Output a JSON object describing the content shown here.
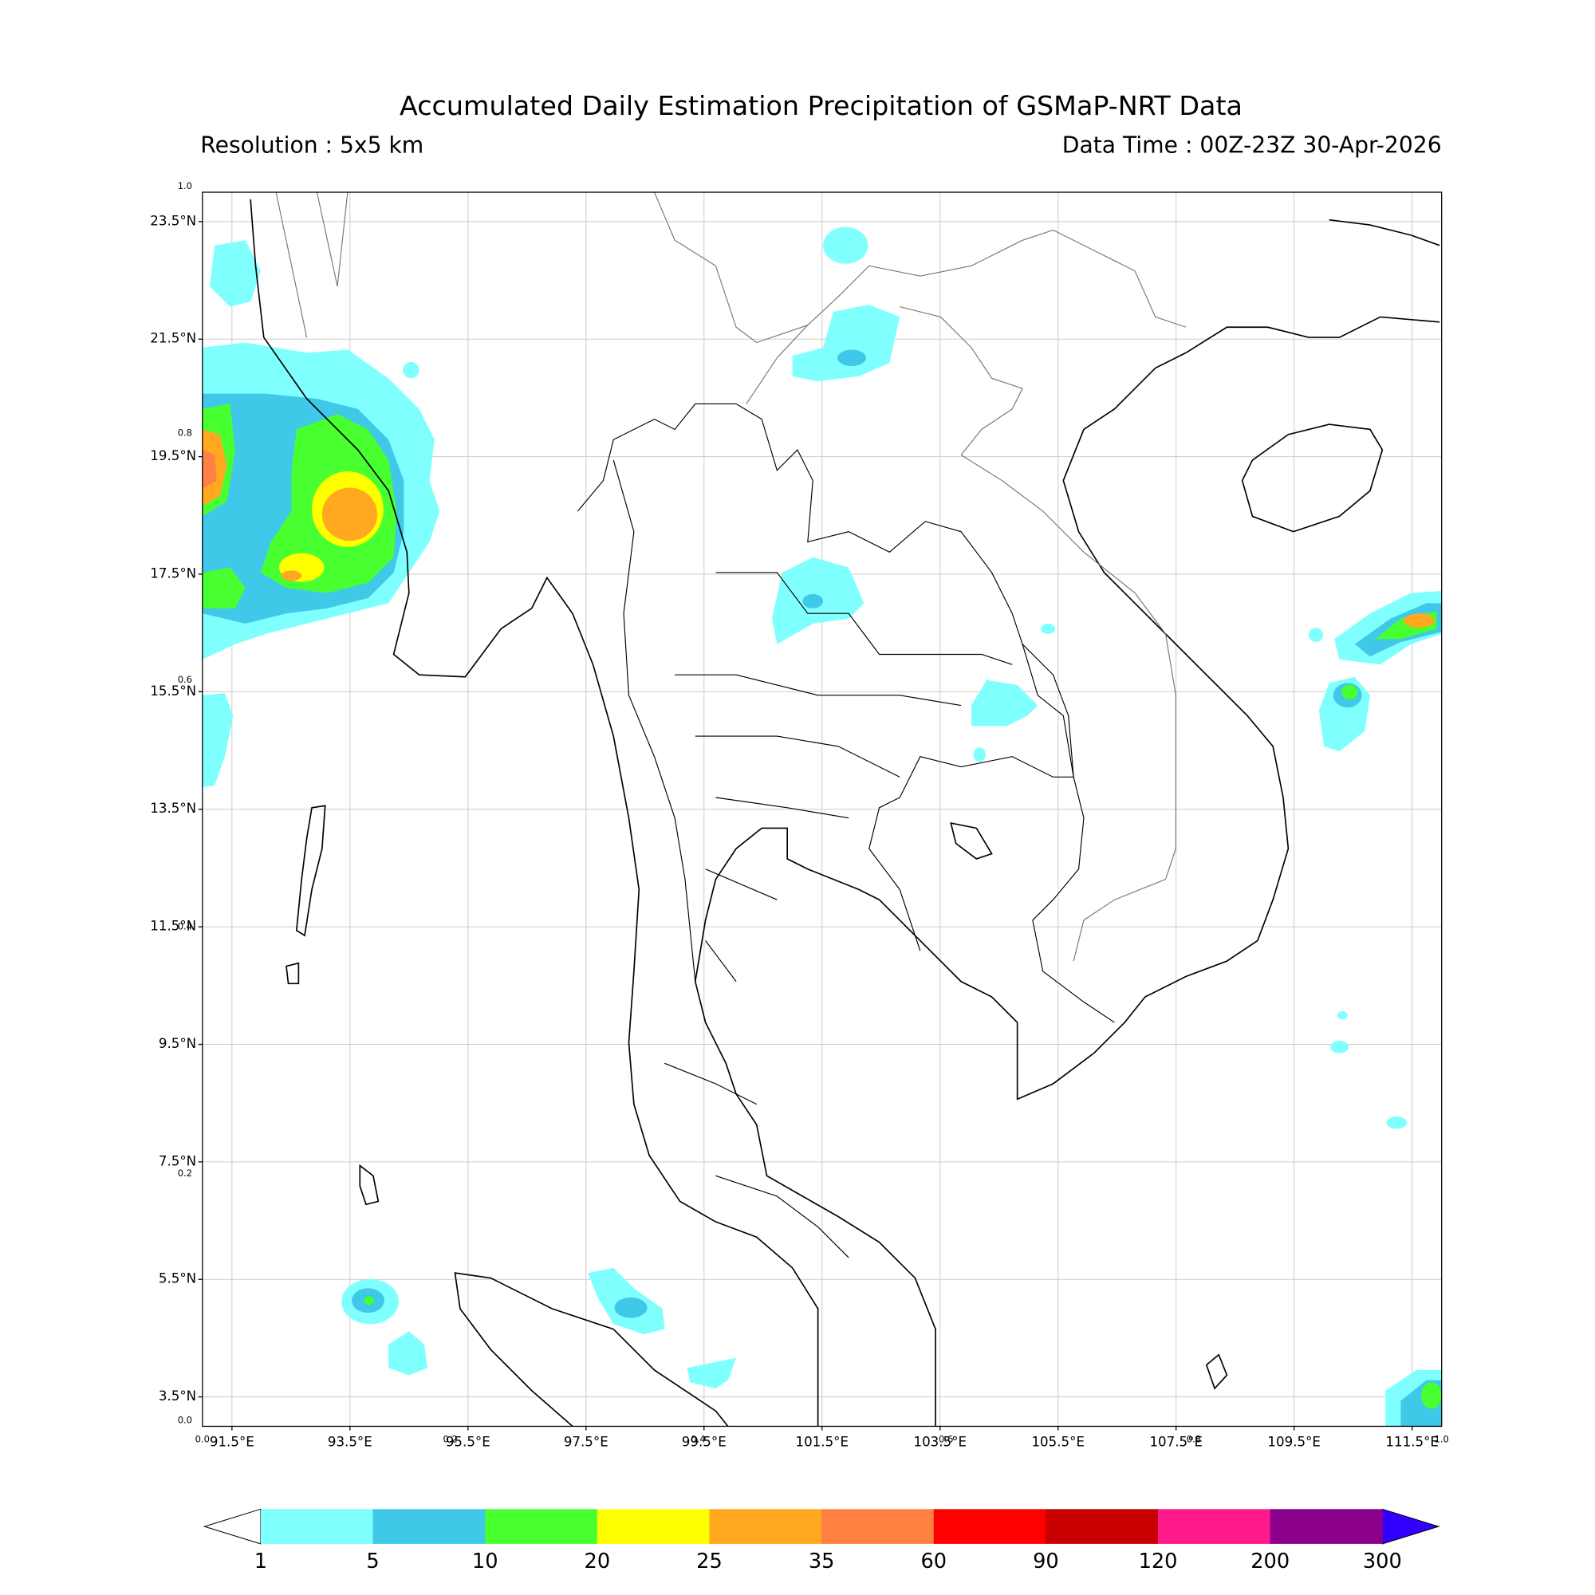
{
  "header": {
    "title": "Accumulated Daily Estimation Precipitation of GSMaP-NRT Data",
    "resolution": "Resolution : 5x5 km",
    "data_time": "Data Time : 00Z-23Z 30-Apr-2026"
  },
  "map": {
    "lon_range": [
      91,
      112
    ],
    "lat_range": [
      3,
      24
    ],
    "lat_ticks": [
      {
        "value": 23.5,
        "label": "23.5°N"
      },
      {
        "value": 21.5,
        "label": "21.5°N"
      },
      {
        "value": 19.5,
        "label": "19.5°N"
      },
      {
        "value": 17.5,
        "label": "17.5°N"
      },
      {
        "value": 15.5,
        "label": "15.5°N"
      },
      {
        "value": 13.5,
        "label": "13.5°N"
      },
      {
        "value": 11.5,
        "label": "11.5°N"
      },
      {
        "value": 9.5,
        "label": "9.5°N"
      },
      {
        "value": 7.5,
        "label": "7.5°N"
      },
      {
        "value": 5.5,
        "label": "5.5°N"
      },
      {
        "value": 3.5,
        "label": "3.5°N"
      }
    ],
    "lon_ticks": [
      {
        "value": 91.5,
        "label": "91.5°E"
      },
      {
        "value": 93.5,
        "label": "93.5°E"
      },
      {
        "value": 95.5,
        "label": "95.5°E"
      },
      {
        "value": 97.5,
        "label": "97.5°E"
      },
      {
        "value": 99.5,
        "label": "99.5°E"
      },
      {
        "value": 101.5,
        "label": "101.5°E"
      },
      {
        "value": 103.5,
        "label": "103.5°E"
      },
      {
        "value": 105.5,
        "label": "105.5°E"
      },
      {
        "value": 107.5,
        "label": "107.5°E"
      },
      {
        "value": 109.5,
        "label": "109.5°E"
      },
      {
        "value": 111.5,
        "label": "111.5°E"
      }
    ]
  },
  "overlay_axis": {
    "range": [
      0,
      1
    ],
    "ticks": [
      {
        "value": 0,
        "label": "0.0"
      },
      {
        "value": 0.2,
        "label": "0.2"
      },
      {
        "value": 0.4,
        "label": "0.4"
      },
      {
        "value": 0.6,
        "label": "0.6"
      },
      {
        "value": 0.8,
        "label": "0.8"
      },
      {
        "value": 1,
        "label": "1.0"
      }
    ]
  },
  "colorbar": {
    "levels": [
      1,
      5,
      10,
      20,
      25,
      35,
      60,
      90,
      120,
      200,
      300
    ],
    "colors": [
      "#80ffff",
      "#40c8e8",
      "#48ff30",
      "#ffff00",
      "#ffa820",
      "#ff8040",
      "#ff0000",
      "#c80000",
      "#ff1a8c",
      "#8b008b"
    ],
    "under_color": "#ffffff",
    "over_color": "#3300ff"
  }
}
